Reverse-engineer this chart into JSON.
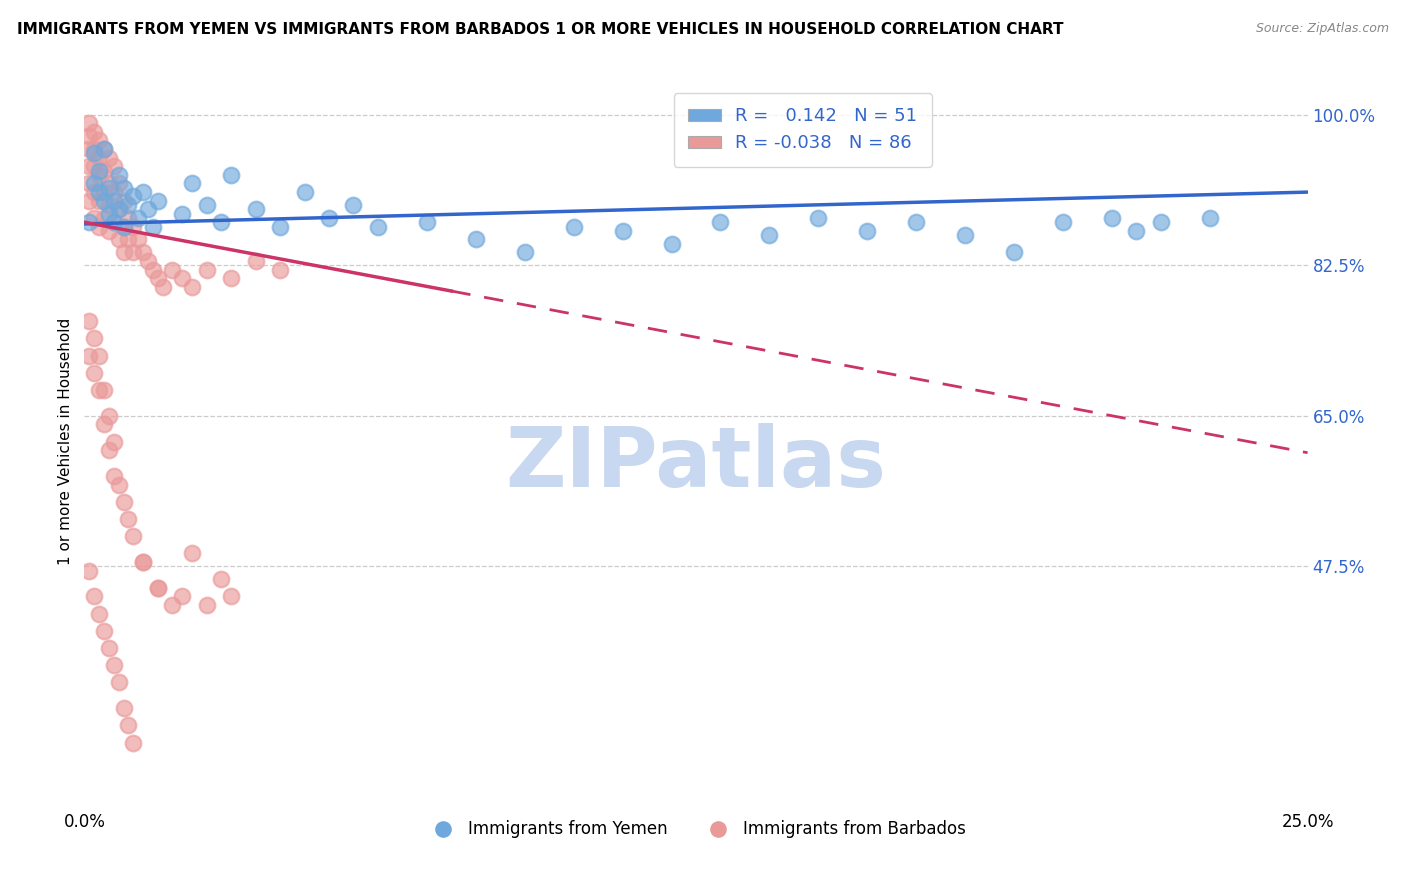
{
  "title": "IMMIGRANTS FROM YEMEN VS IMMIGRANTS FROM BARBADOS 1 OR MORE VEHICLES IN HOUSEHOLD CORRELATION CHART",
  "source": "Source: ZipAtlas.com",
  "ylabel": "1 or more Vehicles in Household",
  "xlim": [
    0.0,
    0.25
  ],
  "ylim": [
    0.2,
    1.04
  ],
  "xticks": [
    0.0,
    0.05,
    0.1,
    0.15,
    0.2,
    0.25
  ],
  "xticklabels": [
    "0.0%",
    "",
    "",
    "",
    "",
    "25.0%"
  ],
  "ytick_positions": [
    1.0,
    0.825,
    0.65,
    0.475
  ],
  "ytick_labels": [
    "100.0%",
    "82.5%",
    "65.0%",
    "47.5%"
  ],
  "legend_R_blue": "0.142",
  "legend_N_blue": "51",
  "legend_R_pink": "-0.038",
  "legend_N_pink": "86",
  "blue_color": "#6FA8DC",
  "pink_color": "#EA9999",
  "trend_blue_color": "#3366CC",
  "trend_pink_color": "#CC3366",
  "watermark": "ZIPatlas",
  "watermark_color": "#C8D8F0",
  "bottom_legend_label1": "Immigrants from Yemen",
  "bottom_legend_label2": "Immigrants from Barbados",
  "yemen_x": [
    0.001,
    0.002,
    0.002,
    0.003,
    0.003,
    0.004,
    0.004,
    0.005,
    0.005,
    0.006,
    0.006,
    0.007,
    0.007,
    0.008,
    0.008,
    0.009,
    0.01,
    0.011,
    0.012,
    0.013,
    0.014,
    0.015,
    0.02,
    0.022,
    0.025,
    0.028,
    0.03,
    0.035,
    0.04,
    0.045,
    0.05,
    0.055,
    0.06,
    0.07,
    0.08,
    0.09,
    0.1,
    0.11,
    0.12,
    0.13,
    0.14,
    0.15,
    0.16,
    0.17,
    0.18,
    0.19,
    0.2,
    0.21,
    0.215,
    0.22,
    0.23
  ],
  "yemen_y": [
    0.875,
    0.92,
    0.955,
    0.91,
    0.935,
    0.9,
    0.96,
    0.885,
    0.915,
    0.9,
    0.875,
    0.93,
    0.89,
    0.915,
    0.87,
    0.895,
    0.905,
    0.88,
    0.91,
    0.89,
    0.87,
    0.9,
    0.885,
    0.92,
    0.895,
    0.875,
    0.93,
    0.89,
    0.87,
    0.91,
    0.88,
    0.895,
    0.87,
    0.875,
    0.855,
    0.84,
    0.87,
    0.865,
    0.85,
    0.875,
    0.86,
    0.88,
    0.865,
    0.875,
    0.86,
    0.84,
    0.875,
    0.88,
    0.865,
    0.875,
    0.88
  ],
  "barbados_x": [
    0.001,
    0.001,
    0.001,
    0.001,
    0.001,
    0.001,
    0.002,
    0.002,
    0.002,
    0.002,
    0.002,
    0.003,
    0.003,
    0.003,
    0.003,
    0.003,
    0.004,
    0.004,
    0.004,
    0.004,
    0.005,
    0.005,
    0.005,
    0.005,
    0.006,
    0.006,
    0.006,
    0.007,
    0.007,
    0.007,
    0.008,
    0.008,
    0.008,
    0.009,
    0.009,
    0.01,
    0.01,
    0.011,
    0.012,
    0.013,
    0.014,
    0.015,
    0.016,
    0.018,
    0.02,
    0.022,
    0.025,
    0.03,
    0.035,
    0.04,
    0.001,
    0.001,
    0.002,
    0.002,
    0.003,
    0.003,
    0.004,
    0.004,
    0.005,
    0.005,
    0.006,
    0.006,
    0.007,
    0.008,
    0.009,
    0.01,
    0.012,
    0.015,
    0.02,
    0.025,
    0.001,
    0.002,
    0.003,
    0.004,
    0.005,
    0.006,
    0.007,
    0.008,
    0.009,
    0.01,
    0.012,
    0.015,
    0.018,
    0.022,
    0.028,
    0.03
  ],
  "barbados_y": [
    0.99,
    0.975,
    0.96,
    0.94,
    0.92,
    0.9,
    0.98,
    0.96,
    0.94,
    0.91,
    0.88,
    0.97,
    0.95,
    0.93,
    0.9,
    0.87,
    0.96,
    0.935,
    0.91,
    0.88,
    0.95,
    0.92,
    0.895,
    0.865,
    0.94,
    0.91,
    0.875,
    0.92,
    0.89,
    0.855,
    0.9,
    0.87,
    0.84,
    0.88,
    0.855,
    0.87,
    0.84,
    0.855,
    0.84,
    0.83,
    0.82,
    0.81,
    0.8,
    0.82,
    0.81,
    0.8,
    0.82,
    0.81,
    0.83,
    0.82,
    0.76,
    0.72,
    0.74,
    0.7,
    0.72,
    0.68,
    0.68,
    0.64,
    0.65,
    0.61,
    0.62,
    0.58,
    0.57,
    0.55,
    0.53,
    0.51,
    0.48,
    0.45,
    0.44,
    0.43,
    0.47,
    0.44,
    0.42,
    0.4,
    0.38,
    0.36,
    0.34,
    0.31,
    0.29,
    0.27,
    0.48,
    0.45,
    0.43,
    0.49,
    0.46,
    0.44
  ],
  "trend_blue_x0": 0.0,
  "trend_blue_y0": 0.873,
  "trend_blue_x1": 0.25,
  "trend_blue_y1": 0.91,
  "trend_pink_solid_x0": 0.0,
  "trend_pink_solid_y0": 0.875,
  "trend_pink_solid_x1": 0.075,
  "trend_pink_solid_y1": 0.795,
  "trend_pink_dash_x0": 0.075,
  "trend_pink_dash_y0": 0.795,
  "trend_pink_dash_x1": 0.25,
  "trend_pink_dash_y1": 0.607
}
